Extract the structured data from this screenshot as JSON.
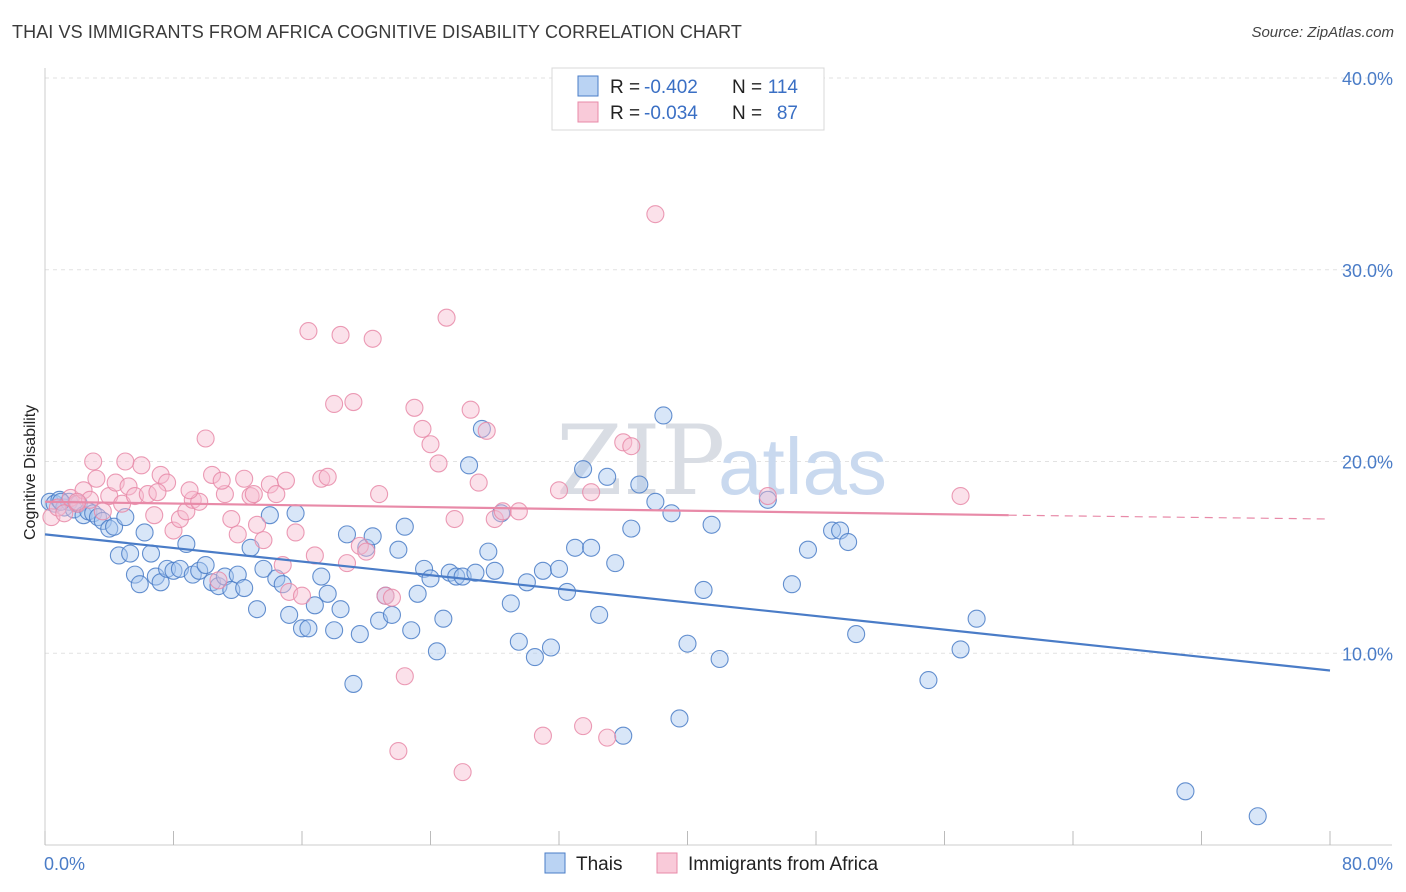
{
  "title": "THAI VS IMMIGRANTS FROM AFRICA COGNITIVE DISABILITY CORRELATION CHART",
  "source": "Source: ZipAtlas.com",
  "watermark": {
    "zip": "ZIP",
    "atlas": "atlas"
  },
  "legend": {
    "r_label": "R =",
    "n_label": "N =",
    "rows": [
      {
        "r": "-0.402",
        "n": "114",
        "fill": "#a9c8f0",
        "stroke": "#4a7cc7"
      },
      {
        "r": "-0.034",
        "n": "87",
        "fill": "#f7bdd0",
        "stroke": "#e88aa8"
      }
    ]
  },
  "chart_data": {
    "type": "scatter",
    "ylabel": "Cognitive Disability",
    "xlim": [
      0,
      80
    ],
    "ylim": [
      0,
      40
    ],
    "x_ticks": [
      {
        "value": 0,
        "label": "0.0%"
      },
      {
        "value": 80,
        "label": "80.0%"
      }
    ],
    "y_ticks": [
      {
        "value": 10,
        "label": "10.0%"
      },
      {
        "value": 20,
        "label": "20.0%"
      },
      {
        "value": 30,
        "label": "30.0%"
      },
      {
        "value": 40,
        "label": "40.0%"
      }
    ],
    "grid": true,
    "series": [
      {
        "name": "Thais",
        "color": "#4a7cc7",
        "fill": "#a9c8f0",
        "trend": {
          "x0": 0,
          "y0": 16.2,
          "x1": 80,
          "y1": 9.1
        },
        "points": [
          [
            0.3,
            17.9
          ],
          [
            0.6,
            17.8
          ],
          [
            0.9,
            18.0
          ],
          [
            1.2,
            17.6
          ],
          [
            1.5,
            17.9
          ],
          [
            1.8,
            17.5
          ],
          [
            2.1,
            17.8
          ],
          [
            2.4,
            17.2
          ],
          [
            2.7,
            17.4
          ],
          [
            3.0,
            17.3
          ],
          [
            3.3,
            17.1
          ],
          [
            3.6,
            16.9
          ],
          [
            4.0,
            16.5
          ],
          [
            4.3,
            16.6
          ],
          [
            4.6,
            15.1
          ],
          [
            5.0,
            17.1
          ],
          [
            5.3,
            15.2
          ],
          [
            5.6,
            14.1
          ],
          [
            5.9,
            13.6
          ],
          [
            6.2,
            16.3
          ],
          [
            6.6,
            15.2
          ],
          [
            6.9,
            14.0
          ],
          [
            7.2,
            13.7
          ],
          [
            7.6,
            14.4
          ],
          [
            8.0,
            14.3
          ],
          [
            8.4,
            14.4
          ],
          [
            8.8,
            15.7
          ],
          [
            9.2,
            14.1
          ],
          [
            9.6,
            14.3
          ],
          [
            10.0,
            14.6
          ],
          [
            10.4,
            13.7
          ],
          [
            10.8,
            13.5
          ],
          [
            11.2,
            14.0
          ],
          [
            11.6,
            13.3
          ],
          [
            12.0,
            14.1
          ],
          [
            12.4,
            13.4
          ],
          [
            12.8,
            15.5
          ],
          [
            13.2,
            12.3
          ],
          [
            13.6,
            14.4
          ],
          [
            14.0,
            17.2
          ],
          [
            14.4,
            13.9
          ],
          [
            14.8,
            13.6
          ],
          [
            15.2,
            12.0
          ],
          [
            15.6,
            17.3
          ],
          [
            16.0,
            11.3
          ],
          [
            16.4,
            11.3
          ],
          [
            16.8,
            12.5
          ],
          [
            17.2,
            14.0
          ],
          [
            17.6,
            13.1
          ],
          [
            18.0,
            11.2
          ],
          [
            18.4,
            12.3
          ],
          [
            18.8,
            16.2
          ],
          [
            19.2,
            8.4
          ],
          [
            19.6,
            11.0
          ],
          [
            20.0,
            15.5
          ],
          [
            20.4,
            16.1
          ],
          [
            20.8,
            11.7
          ],
          [
            21.2,
            13.0
          ],
          [
            21.6,
            12.0
          ],
          [
            22.0,
            15.4
          ],
          [
            22.4,
            16.6
          ],
          [
            22.8,
            11.2
          ],
          [
            23.2,
            13.1
          ],
          [
            23.6,
            14.4
          ],
          [
            24.0,
            13.9
          ],
          [
            24.4,
            10.1
          ],
          [
            24.8,
            11.8
          ],
          [
            25.2,
            14.2
          ],
          [
            25.6,
            14.0
          ],
          [
            26.0,
            14.0
          ],
          [
            26.4,
            19.8
          ],
          [
            26.8,
            14.2
          ],
          [
            27.2,
            21.7
          ],
          [
            27.6,
            15.3
          ],
          [
            28.0,
            14.3
          ],
          [
            28.4,
            17.3
          ],
          [
            29.0,
            12.6
          ],
          [
            29.5,
            10.6
          ],
          [
            30.0,
            13.7
          ],
          [
            30.5,
            9.8
          ],
          [
            31.0,
            14.3
          ],
          [
            31.5,
            10.3
          ],
          [
            32.0,
            14.4
          ],
          [
            32.5,
            13.2
          ],
          [
            33.0,
            15.5
          ],
          [
            33.5,
            19.6
          ],
          [
            34.0,
            15.5
          ],
          [
            34.5,
            12.0
          ],
          [
            35.0,
            19.2
          ],
          [
            35.5,
            14.7
          ],
          [
            36.0,
            5.7
          ],
          [
            36.5,
            16.5
          ],
          [
            37.0,
            18.8
          ],
          [
            38.0,
            17.9
          ],
          [
            38.5,
            22.4
          ],
          [
            39.0,
            17.3
          ],
          [
            39.5,
            6.6
          ],
          [
            40.0,
            10.5
          ],
          [
            41.0,
            13.3
          ],
          [
            41.5,
            16.7
          ],
          [
            42.0,
            9.7
          ],
          [
            45.0,
            18.0
          ],
          [
            46.5,
            13.6
          ],
          [
            47.5,
            15.4
          ],
          [
            49.0,
            16.4
          ],
          [
            49.5,
            16.4
          ],
          [
            50.0,
            15.8
          ],
          [
            50.5,
            11.0
          ],
          [
            55.0,
            8.6
          ],
          [
            57.0,
            10.2
          ],
          [
            58.0,
            11.8
          ],
          [
            71.0,
            2.8
          ],
          [
            75.5,
            1.5
          ],
          [
            1.0,
            17.9
          ]
        ]
      },
      {
        "name": "Immigrants from Africa",
        "color": "#e88aa8",
        "fill": "#f7bdd0",
        "trend": {
          "x0": 0,
          "y0": 17.9,
          "x1": 60,
          "y1": 17.2,
          "dashed_to_x": 80,
          "dashed_to_y": 17.0
        },
        "points": [
          [
            0.4,
            17.1
          ],
          [
            0.8,
            17.6
          ],
          [
            1.2,
            17.3
          ],
          [
            1.6,
            18.1
          ],
          [
            2.0,
            17.8
          ],
          [
            2.4,
            18.5
          ],
          [
            2.8,
            18.0
          ],
          [
            3.2,
            19.1
          ],
          [
            3.6,
            17.4
          ],
          [
            4.0,
            18.2
          ],
          [
            4.4,
            18.9
          ],
          [
            4.8,
            17.8
          ],
          [
            5.2,
            18.7
          ],
          [
            5.6,
            18.2
          ],
          [
            6.0,
            19.8
          ],
          [
            6.4,
            18.3
          ],
          [
            6.8,
            17.2
          ],
          [
            7.2,
            19.3
          ],
          [
            7.6,
            18.9
          ],
          [
            8.0,
            16.4
          ],
          [
            8.4,
            17.0
          ],
          [
            8.8,
            17.4
          ],
          [
            9.2,
            18.0
          ],
          [
            9.6,
            17.9
          ],
          [
            10.0,
            21.2
          ],
          [
            10.4,
            19.3
          ],
          [
            10.8,
            13.8
          ],
          [
            11.2,
            18.3
          ],
          [
            11.6,
            17.0
          ],
          [
            12.0,
            16.2
          ],
          [
            12.4,
            19.1
          ],
          [
            12.8,
            18.2
          ],
          [
            13.2,
            16.7
          ],
          [
            13.6,
            15.9
          ],
          [
            14.0,
            18.8
          ],
          [
            14.4,
            18.3
          ],
          [
            14.8,
            14.6
          ],
          [
            15.2,
            13.2
          ],
          [
            15.6,
            16.3
          ],
          [
            16.0,
            13.0
          ],
          [
            16.4,
            26.8
          ],
          [
            16.8,
            15.1
          ],
          [
            17.2,
            19.1
          ],
          [
            17.6,
            19.2
          ],
          [
            18.0,
            23.0
          ],
          [
            18.4,
            26.6
          ],
          [
            18.8,
            14.7
          ],
          [
            19.2,
            23.1
          ],
          [
            19.6,
            15.6
          ],
          [
            20.0,
            15.3
          ],
          [
            20.4,
            26.4
          ],
          [
            20.8,
            18.3
          ],
          [
            21.2,
            13.0
          ],
          [
            21.6,
            12.9
          ],
          [
            22.0,
            4.9
          ],
          [
            22.4,
            8.8
          ],
          [
            23.0,
            22.8
          ],
          [
            23.5,
            21.7
          ],
          [
            24.0,
            20.9
          ],
          [
            24.5,
            19.9
          ],
          [
            25.0,
            27.5
          ],
          [
            25.5,
            17.0
          ],
          [
            26.0,
            3.8
          ],
          [
            26.5,
            22.7
          ],
          [
            27.0,
            18.9
          ],
          [
            27.5,
            21.6
          ],
          [
            28.0,
            17.0
          ],
          [
            28.5,
            17.4
          ],
          [
            29.5,
            17.4
          ],
          [
            31.0,
            5.7
          ],
          [
            32.0,
            18.5
          ],
          [
            33.5,
            6.2
          ],
          [
            34.0,
            18.4
          ],
          [
            35.0,
            5.6
          ],
          [
            36.0,
            21.0
          ],
          [
            36.5,
            20.8
          ],
          [
            38.0,
            32.9
          ],
          [
            45.0,
            18.2
          ],
          [
            57.0,
            18.2
          ],
          [
            3.0,
            20.0
          ],
          [
            5.0,
            20.0
          ],
          [
            7.0,
            18.4
          ],
          [
            9.0,
            18.5
          ],
          [
            11.0,
            19.0
          ],
          [
            13.0,
            18.3
          ],
          [
            15.0,
            19.0
          ],
          [
            2.0,
            17.9
          ]
        ]
      }
    ]
  },
  "bottom_legend": [
    {
      "label": "Thais",
      "fill": "#a9c8f0",
      "stroke": "#4a7cc7"
    },
    {
      "label": "Immigrants from Africa",
      "fill": "#f7bdd0",
      "stroke": "#e88aa8"
    }
  ]
}
